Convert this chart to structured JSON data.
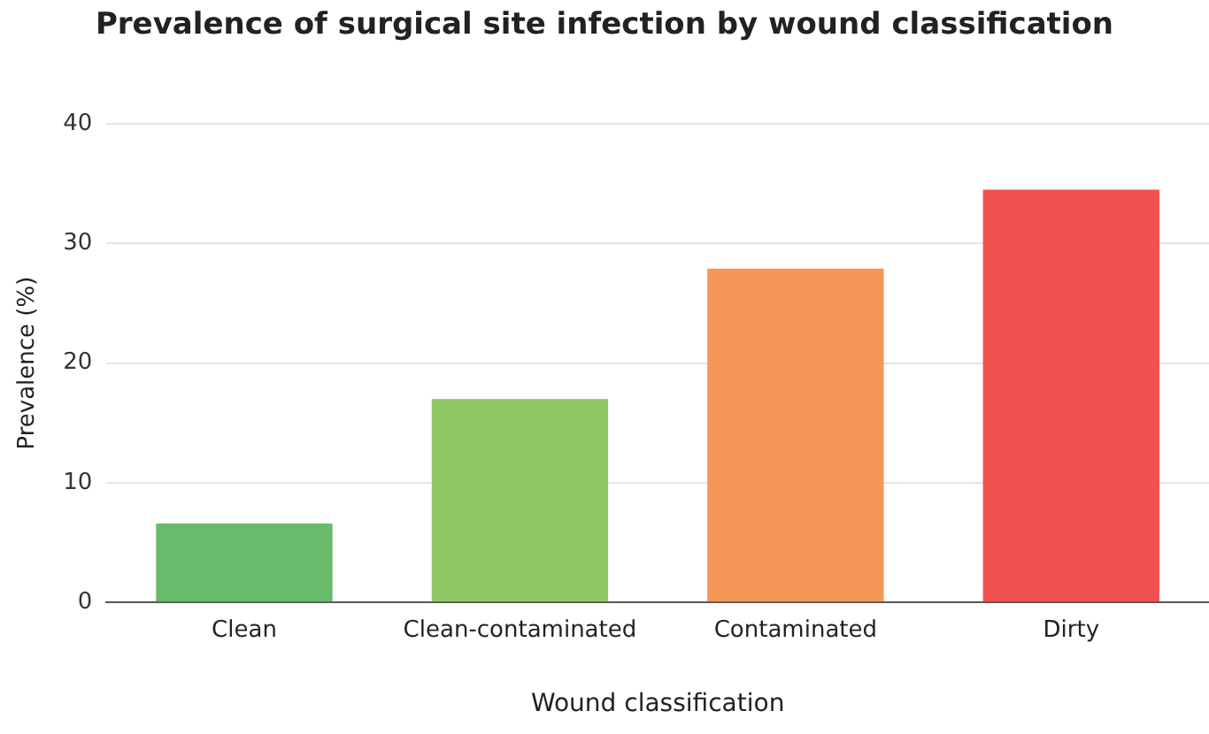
{
  "chart_data": {
    "type": "bar",
    "title": "Prevalence of surgical site infection by wound classification",
    "xlabel": "Wound classification",
    "ylabel": "Prevalence (%)",
    "categories": [
      "Clean",
      "Clean-contaminated",
      "Contaminated",
      "Dirty"
    ],
    "values": [
      6.6,
      17.0,
      27.9,
      34.5
    ],
    "colors": [
      "#68bb6a",
      "#8dc865",
      "#f39656",
      "#ee5150"
    ],
    "ylim": [
      0,
      40
    ],
    "yticks": [
      0,
      10,
      20,
      30,
      40
    ],
    "grid": "y",
    "legend": false
  }
}
